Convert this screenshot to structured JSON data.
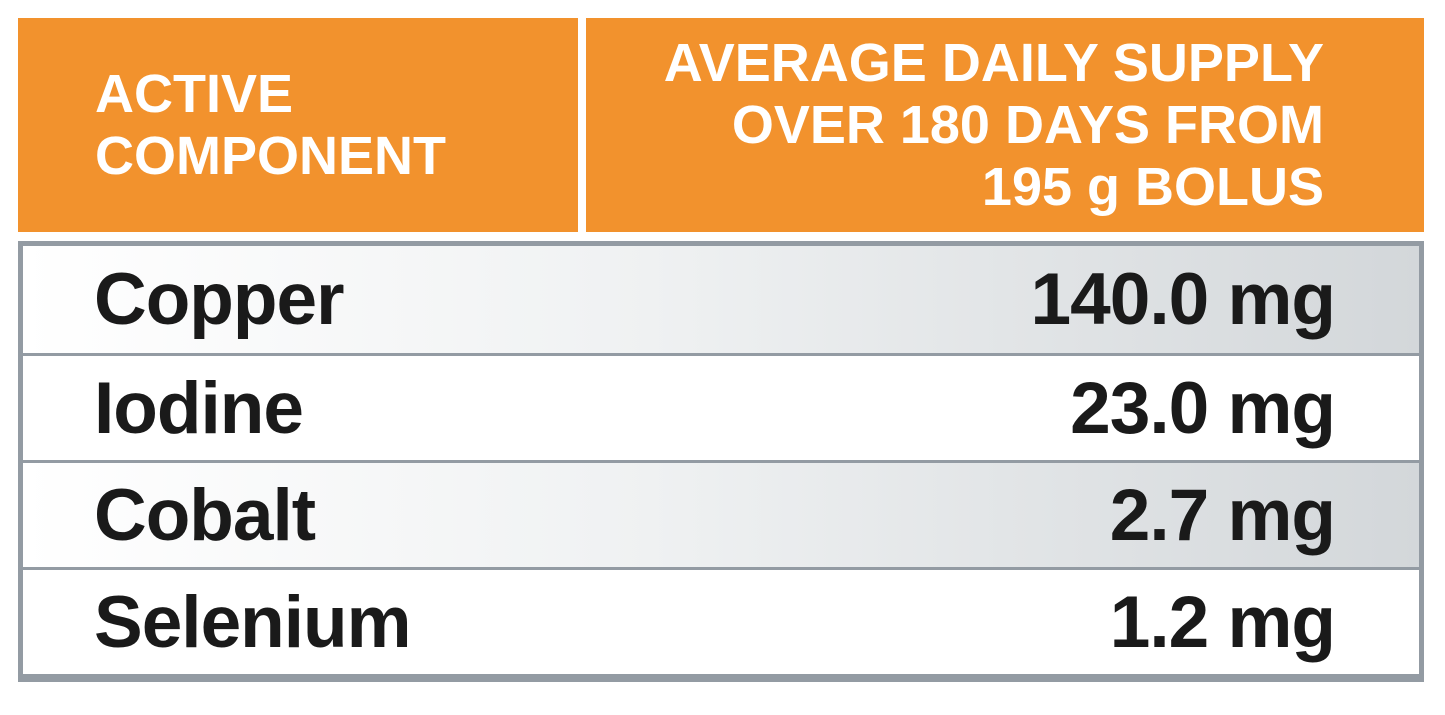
{
  "table": {
    "header": {
      "left": {
        "lines": [
          "ACTIVE",
          "COMPONENT"
        ]
      },
      "right": {
        "lines": [
          "AVERAGE DAILY SUPPLY",
          "OVER 180 DAYS FROM",
          "195 g BOLUS"
        ]
      }
    },
    "rows": [
      {
        "component": "Copper",
        "value": "140.0 mg"
      },
      {
        "component": "Iodine",
        "value": "23.0 mg"
      },
      {
        "component": "Cobalt",
        "value": "2.7 mg"
      },
      {
        "component": "Selenium",
        "value": "1.2 mg"
      }
    ]
  },
  "colors": {
    "header_bg": "#F2922D",
    "header_text": "#FFFFFF",
    "border": "#939BA3",
    "row_text": "#1A1A1A",
    "row_shade_mid": "#EFF1F2",
    "row_shade_end": "#D3D7DA",
    "page_bg": "#FFFFFF"
  }
}
